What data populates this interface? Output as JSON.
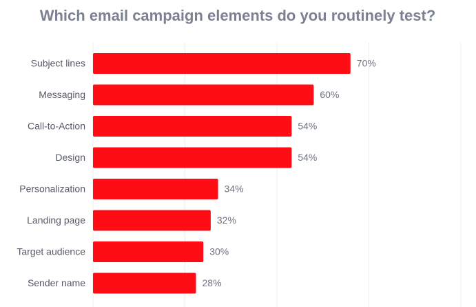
{
  "chart_data": {
    "type": "bar",
    "orientation": "horizontal",
    "title": "Which email campaign elements do you routinely test?",
    "categories": [
      "Subject lines",
      "Messaging",
      "Call-to-Action",
      "Design",
      "Personalization",
      "Landing page",
      "Target audience",
      "Sender name"
    ],
    "values": [
      70,
      60,
      54,
      54,
      34,
      32,
      30,
      28
    ],
    "value_labels": [
      "70%",
      "60%",
      "54%",
      "54%",
      "34%",
      "32%",
      "30%",
      "28%"
    ],
    "color": "#ff0d14",
    "xlim": [
      0,
      100
    ],
    "xticks": [
      0,
      25,
      50,
      75,
      100
    ],
    "grid": true
  }
}
